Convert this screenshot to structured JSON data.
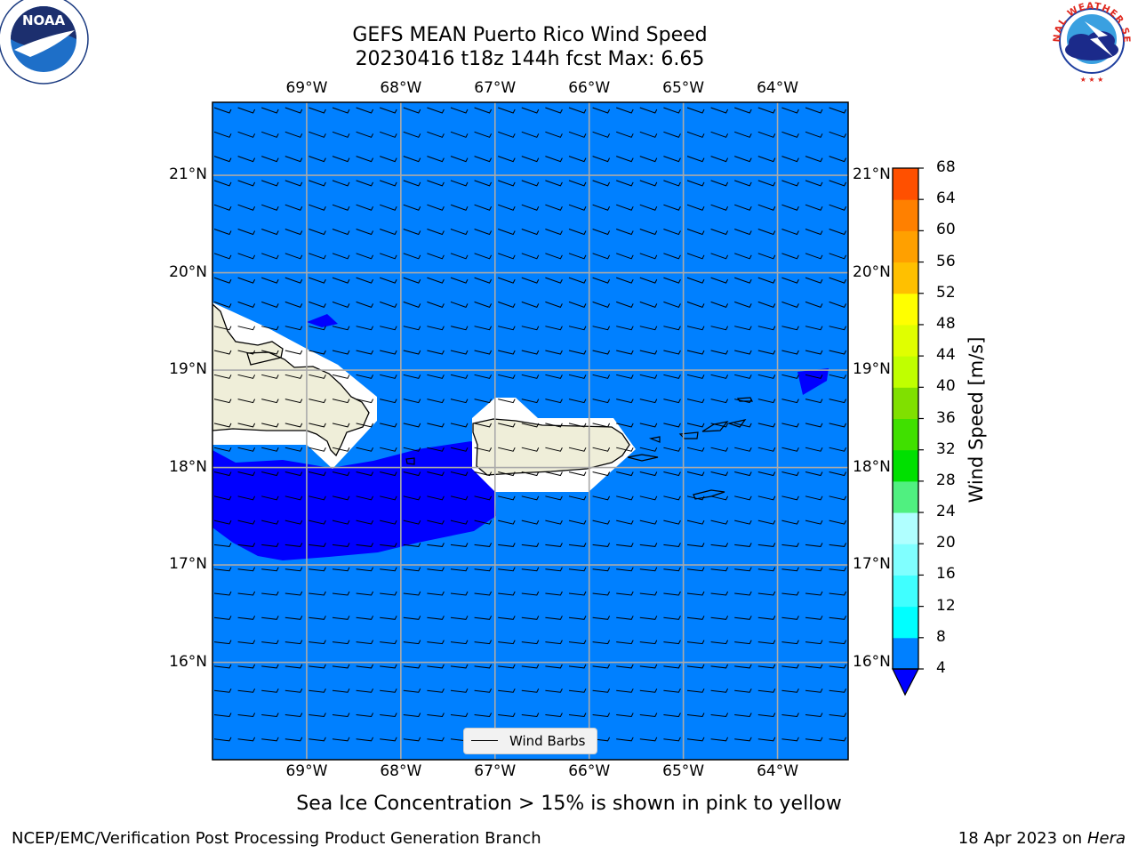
{
  "title": {
    "line1": "GEFS MEAN Puerto Rico Wind Speed",
    "line2": "20230416 t18z 144h fcst   Max: 6.65"
  },
  "logos": {
    "left": {
      "name": "NOAA",
      "text": "NOAA"
    },
    "right": {
      "name": "National Weather Service",
      "text": "NATIONAL WEATHER SERVICE"
    }
  },
  "map": {
    "lon_ticks": [
      "69°W",
      "68°W",
      "67°W",
      "66°W",
      "65°W",
      "64°W"
    ],
    "lat_ticks": [
      "21°N",
      "20°N",
      "19°N",
      "18°N",
      "17°N",
      "16°N"
    ],
    "lon_values": [
      -69,
      -68,
      -67,
      -66,
      -65,
      -64
    ],
    "lat_values": [
      21,
      20,
      19,
      18,
      17,
      16
    ],
    "lon_range": [
      -70,
      -63.25
    ],
    "lat_range": [
      15,
      21.75
    ],
    "ocean_color": "#0080ff",
    "low_wind_color": "#0000ff",
    "land_color": "#efeed9",
    "grid": true
  },
  "legend": {
    "label": "Wind Barbs"
  },
  "colorbar": {
    "label": "Wind Speed [m/s]",
    "ticks": [
      "4",
      "8",
      "12",
      "16",
      "20",
      "24",
      "28",
      "32",
      "36",
      "40",
      "44",
      "48",
      "52",
      "56",
      "60",
      "64",
      "68"
    ],
    "colors": [
      "#0080ff",
      "#00ffff",
      "#40ffff",
      "#80ffff",
      "#b0ffff",
      "#50f080",
      "#00e000",
      "#40e000",
      "#80e000",
      "#c0ff00",
      "#e0ff00",
      "#ffff00",
      "#ffc000",
      "#ffa000",
      "#ff8000",
      "#ff5000",
      "#ff2000",
      "#ff0000"
    ],
    "extend_color": "#0000ff"
  },
  "subnote": "Sea Ice Concentration > 15% is shown in pink to yellow",
  "footer": {
    "left": "NCEP/EMC/Verification Post Processing Product Generation Branch",
    "right_prefix": "18 Apr 2023 on ",
    "right_machine": "Hera"
  }
}
